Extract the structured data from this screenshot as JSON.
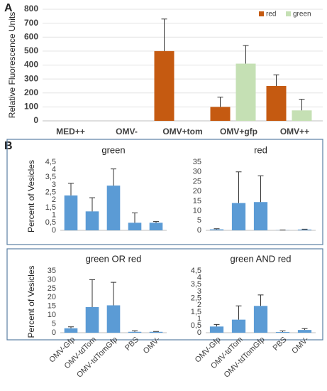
{
  "panel_labels": [
    "A",
    "B"
  ],
  "chart_data": [
    {
      "type": "bar",
      "ylabel": "Relative Fluorescence Units",
      "categories": [
        "MED++",
        "OMV-",
        "OMV+tom",
        "OMV+gfp",
        "OMV++"
      ],
      "series": [
        {
          "name": "red",
          "color": "#c55a11",
          "values": [
            0,
            0,
            500,
            100,
            250
          ],
          "errors": [
            null,
            null,
            230,
            70,
            80
          ]
        },
        {
          "name": "green",
          "color": "#c5e0b4",
          "values": [
            0,
            0,
            0,
            410,
            75
          ],
          "errors": [
            null,
            null,
            null,
            130,
            80
          ]
        }
      ],
      "ylim": [
        0,
        800
      ],
      "yticks": [
        0,
        100,
        200,
        300,
        400,
        500,
        600,
        700,
        800
      ],
      "grid": true,
      "legend": "upper right"
    },
    {
      "type": "bar",
      "title": "green",
      "ylabel": "Percent of Vesicles",
      "color": "#5b9bd5",
      "values": [
        2.3,
        1.25,
        2.95,
        0.5,
        0.5
      ],
      "errors": [
        0.8,
        0.9,
        1.1,
        0.65,
        0.08
      ],
      "ylim": [
        0,
        4.5
      ],
      "yticks": [
        0,
        {
          "value": 0.5,
          "label": "0,5"
        },
        1,
        {
          "value": 1.5,
          "label": "1,5"
        },
        2,
        {
          "value": 2.5,
          "label": "2,5"
        },
        3,
        {
          "value": 3.5,
          "label": "3,5"
        },
        4,
        {
          "value": 4.5,
          "label": "4,5"
        }
      ],
      "grid": false
    },
    {
      "type": "bar",
      "title": "red",
      "color": "#5b9bd5",
      "values": [
        0.5,
        14,
        14.5,
        0.1,
        0.4
      ],
      "errors": [
        0.3,
        16,
        13.5,
        0.1,
        0.2
      ],
      "ylim": [
        0,
        35
      ],
      "yticks": [
        0,
        5,
        10,
        15,
        20,
        25,
        30,
        35
      ],
      "grid": false
    },
    {
      "type": "bar",
      "title": "green OR red",
      "ylabel": "Percent of Vesicles",
      "color": "#5b9bd5",
      "categories": [
        "OMV-Gfp",
        "OMV-tdTom",
        "OMV-tdTomGfp",
        "PBS",
        "OMV-"
      ],
      "values": [
        2.5,
        14.5,
        15.5,
        0.5,
        0.5
      ],
      "errors": [
        0.8,
        15.5,
        13,
        0.6,
        0.2
      ],
      "ylim": [
        0,
        35
      ],
      "yticks": [
        0,
        5,
        10,
        15,
        20,
        25,
        30,
        35
      ],
      "grid": false
    },
    {
      "type": "bar",
      "title": "green AND red",
      "color": "#5b9bd5",
      "categories": [
        "OMV-Gfp",
        "OMV-tdTom",
        "OMV-tdTomGfp",
        "PBS",
        "OMV-"
      ],
      "values": [
        0.45,
        0.95,
        1.95,
        0.05,
        0.2
      ],
      "errors": [
        0.15,
        1.0,
        0.8,
        0.08,
        0.1
      ],
      "ylim": [
        0,
        4.5
      ],
      "yticks": [
        0,
        {
          "value": 0.5,
          "label": "0,5"
        },
        1,
        {
          "value": 1.5,
          "label": "1,5"
        },
        2,
        {
          "value": 2.5,
          "label": "2,5"
        },
        3,
        {
          "value": 3.5,
          "label": "3,5"
        },
        4,
        {
          "value": 4.5,
          "label": "4,5"
        }
      ],
      "grid": false
    }
  ]
}
